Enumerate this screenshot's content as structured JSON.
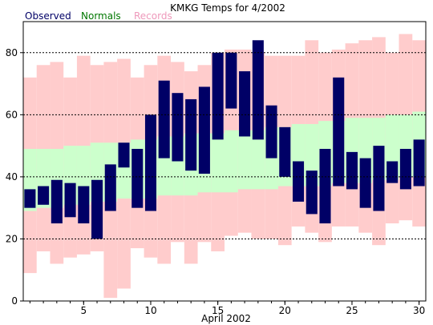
{
  "chart_data": {
    "type": "bar",
    "title": "KMKG Temps for 4/2002",
    "xlabel": "April 2002",
    "ylabel": "",
    "legend": [
      {
        "name": "Observed",
        "color": "#000066"
      },
      {
        "name": "Normals",
        "color": "#007700"
      },
      {
        "name": "Records",
        "color": "#ee99bb"
      }
    ],
    "legend_placement": "top-left",
    "xlim": [
      0.5,
      30.5
    ],
    "ylim": [
      0,
      90
    ],
    "xticks": [
      5,
      10,
      15,
      20,
      25,
      30
    ],
    "yticks": [
      0,
      20,
      40,
      60,
      80
    ],
    "grid": "dashed horizontal at 20, 40, 60, 80",
    "days": [
      1,
      2,
      3,
      4,
      5,
      6,
      7,
      8,
      9,
      10,
      11,
      12,
      13,
      14,
      15,
      16,
      17,
      18,
      19,
      20,
      21,
      22,
      23,
      24,
      25,
      26,
      27,
      28,
      29,
      30
    ],
    "series": [
      {
        "name": "Records",
        "color": "#ffcccc",
        "low": [
          9,
          16,
          12,
          14,
          15,
          16,
          1,
          4,
          17,
          14,
          12,
          19,
          12,
          19,
          16,
          21,
          22,
          20,
          20,
          18,
          24,
          22,
          19,
          24,
          24,
          22,
          18,
          25,
          26,
          24
        ],
        "high": [
          72,
          76,
          77,
          72,
          79,
          76,
          77,
          78,
          72,
          76,
          79,
          77,
          74,
          76,
          80,
          81,
          81,
          80,
          79,
          79,
          79,
          84,
          80,
          81,
          83,
          84,
          85,
          80,
          86,
          84
        ]
      },
      {
        "name": "Normals",
        "color": "#ccffcc",
        "low": [
          29,
          30,
          30,
          31,
          31,
          32,
          32,
          33,
          33,
          33,
          34,
          34,
          34,
          35,
          35,
          35,
          36,
          36,
          36,
          37,
          37,
          37,
          37,
          38,
          38,
          38,
          39,
          39,
          40,
          40
        ],
        "high": [
          49,
          49,
          49,
          50,
          50,
          51,
          51,
          51,
          52,
          52,
          53,
          53,
          54,
          54,
          54,
          55,
          55,
          55,
          56,
          56,
          57,
          57,
          58,
          58,
          59,
          59,
          59,
          60,
          60,
          61
        ]
      },
      {
        "name": "Observed",
        "color": "#000066",
        "low": [
          30,
          31,
          25,
          27,
          25,
          20,
          29,
          43,
          30,
          29,
          46,
          45,
          42,
          41,
          52,
          62,
          53,
          52,
          46,
          40,
          32,
          28,
          25,
          37,
          36,
          30,
          29,
          38,
          36,
          37
        ],
        "high": [
          36,
          37,
          39,
          38,
          37,
          39,
          44,
          51,
          49,
          60,
          71,
          67,
          65,
          69,
          80,
          80,
          74,
          84,
          63,
          56,
          45,
          42,
          49,
          72,
          48,
          46,
          50,
          45,
          49,
          52
        ]
      }
    ]
  }
}
